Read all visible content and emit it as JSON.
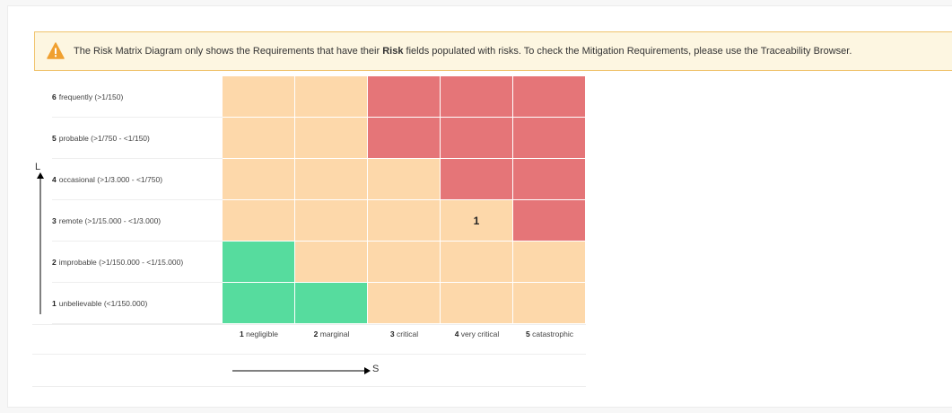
{
  "notice": {
    "text_before": "The Risk Matrix Diagram only shows the Requirements that have their ",
    "bold": "Risk",
    "text_after": " fields populated with risks. To check the Mitigation Requirements, please use the Traceability Browser."
  },
  "matrix": {
    "likelihood_axis": "L",
    "severity_axis": "S",
    "rows": [
      {
        "num": "6",
        "label": "frequently (>1/150)"
      },
      {
        "num": "5",
        "label": "probable (>1/750 - <1/150)"
      },
      {
        "num": "4",
        "label": "occasional (>1/3.000 - <1/750)"
      },
      {
        "num": "3",
        "label": "remote (>1/15.000 - <1/3.000)"
      },
      {
        "num": "2",
        "label": "improbable (>1/150.000 - <1/15.000)"
      },
      {
        "num": "1",
        "label": "unbelievable (<1/150.000)"
      }
    ],
    "columns": [
      {
        "num": "1",
        "label": "negligible"
      },
      {
        "num": "2",
        "label": "marginal"
      },
      {
        "num": "3",
        "label": "critical"
      },
      {
        "num": "4",
        "label": "very critical"
      },
      {
        "num": "5",
        "label": "catastrophic"
      }
    ],
    "cells": [
      [
        "medium",
        "medium",
        "high",
        "high",
        "high"
      ],
      [
        "medium",
        "medium",
        "high",
        "high",
        "high"
      ],
      [
        "medium",
        "medium",
        "medium",
        "high",
        "high"
      ],
      [
        "medium",
        "medium",
        "medium",
        "medium",
        "high"
      ],
      [
        "low",
        "medium",
        "medium",
        "medium",
        "medium"
      ],
      [
        "low",
        "low",
        "medium",
        "medium",
        "medium"
      ]
    ],
    "counts": [
      [
        "",
        "",
        "",
        "",
        ""
      ],
      [
        "",
        "",
        "",
        "",
        ""
      ],
      [
        "",
        "",
        "",
        "",
        ""
      ],
      [
        "",
        "",
        "",
        "1",
        ""
      ],
      [
        "",
        "",
        "",
        "",
        ""
      ],
      [
        "",
        "",
        "",
        "",
        ""
      ]
    ],
    "colors": {
      "low": "#56dc9e",
      "medium": "#fdd8aa",
      "high": "#e57578"
    }
  }
}
